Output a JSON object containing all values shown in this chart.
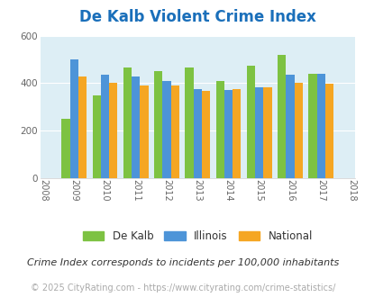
{
  "title": "De Kalb Violent Crime Index",
  "all_years": [
    2008,
    2009,
    2010,
    2011,
    2012,
    2013,
    2014,
    2015,
    2016,
    2017,
    2018
  ],
  "data_years": [
    2009,
    2010,
    2011,
    2012,
    2013,
    2014,
    2015,
    2016,
    2017
  ],
  "dekalb": [
    250,
    350,
    465,
    450,
    465,
    408,
    475,
    520,
    440
  ],
  "illinois": [
    500,
    435,
    428,
    410,
    375,
    370,
    382,
    435,
    440
  ],
  "national": [
    428,
    403,
    390,
    390,
    368,
    375,
    382,
    400,
    397
  ],
  "color_dekalb": "#7dc242",
  "color_illinois": "#4d94d8",
  "color_national": "#f5a623",
  "color_title": "#1a6fba",
  "bg_color": "#ddeef5",
  "ylim": [
    0,
    600
  ],
  "yticks": [
    0,
    200,
    400,
    600
  ],
  "subtitle": "Crime Index corresponds to incidents per 100,000 inhabitants",
  "footer": "© 2025 CityRating.com - https://www.cityrating.com/crime-statistics/",
  "legend_labels": [
    "De Kalb",
    "Illinois",
    "National"
  ],
  "bar_width": 0.27,
  "title_fontsize": 12,
  "subtitle_fontsize": 8,
  "footer_fontsize": 7
}
